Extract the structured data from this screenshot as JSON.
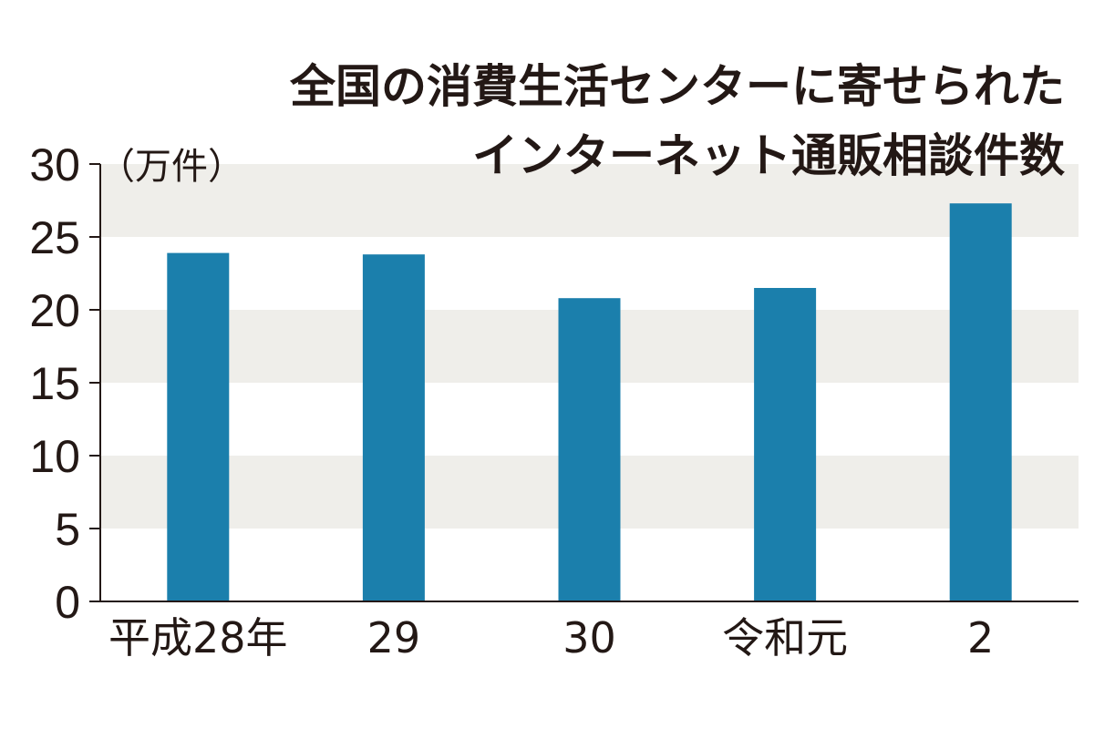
{
  "chart_data": {
    "type": "bar",
    "title_lines": [
      "全国の消費生活センターに寄せられた",
      "インターネット通販相談件数"
    ],
    "unit_label": "（万件）",
    "categories": [
      "平成28年",
      "29",
      "30",
      "令和元",
      "2"
    ],
    "values": [
      23.9,
      23.8,
      20.8,
      21.5,
      27.3
    ],
    "yticks": [
      0,
      5,
      10,
      15,
      20,
      25,
      30
    ],
    "ylim": [
      0,
      30
    ],
    "grid": "alternating bands",
    "colors": {
      "bar": "#1b7fac",
      "band": "#efeeea",
      "axis": "#231815",
      "text": "#231815"
    }
  }
}
